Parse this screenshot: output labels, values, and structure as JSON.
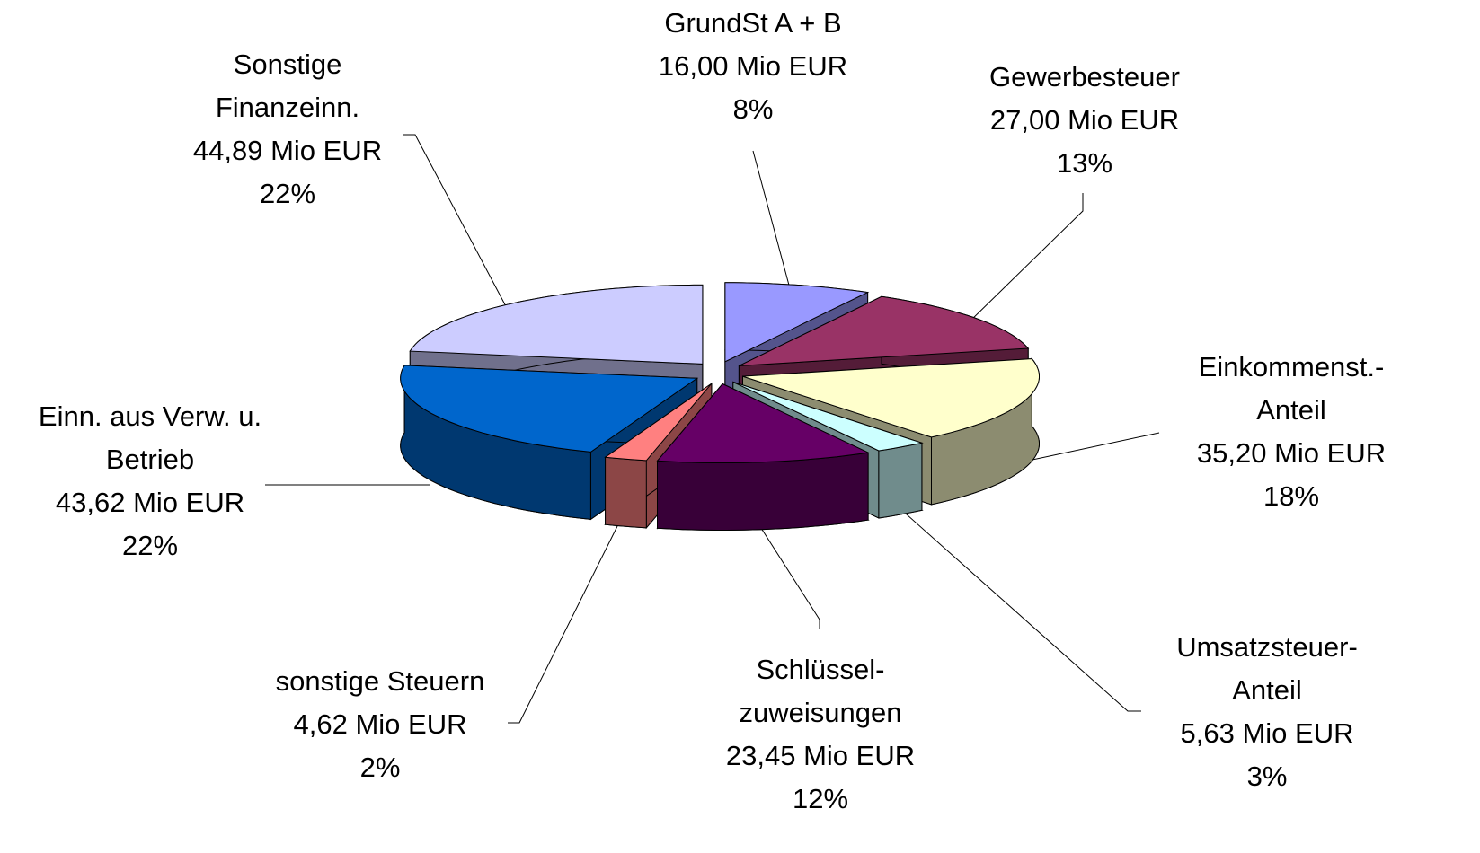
{
  "chart_data": {
    "type": "pie3d",
    "categories": [
      "GrundSt A + B",
      "Gewerbesteuer",
      "Einkommenst.-\nAnteil",
      "Umsatzsteuer-\nAnteil",
      "Schlüssel-\nzuweisungen",
      "sonstige Steuern",
      "Einn. aus Verw. u.\nBetrieb",
      "Sonstige\nFinanzeinn."
    ],
    "values": [
      16.0,
      27.0,
      35.2,
      5.63,
      23.45,
      4.62,
      43.62,
      44.89
    ],
    "value_labels": [
      "16,00 Mio EUR",
      "27,00 Mio EUR",
      "35,20 Mio EUR",
      "5,63 Mio EUR",
      "23,45 Mio EUR",
      "4,62 Mio EUR",
      "43,62 Mio EUR",
      "44,89 Mio EUR"
    ],
    "percents": [
      8,
      13,
      18,
      3,
      12,
      2,
      22,
      22
    ],
    "percent_labels": [
      "8%",
      "13%",
      "18%",
      "3%",
      "12%",
      "2%",
      "22%",
      "22%"
    ],
    "colors": [
      "#9999ff",
      "#993366",
      "#ffffcc",
      "#ccffff",
      "#660066",
      "#ff8080",
      "#0066cc",
      "#ccccff"
    ]
  }
}
